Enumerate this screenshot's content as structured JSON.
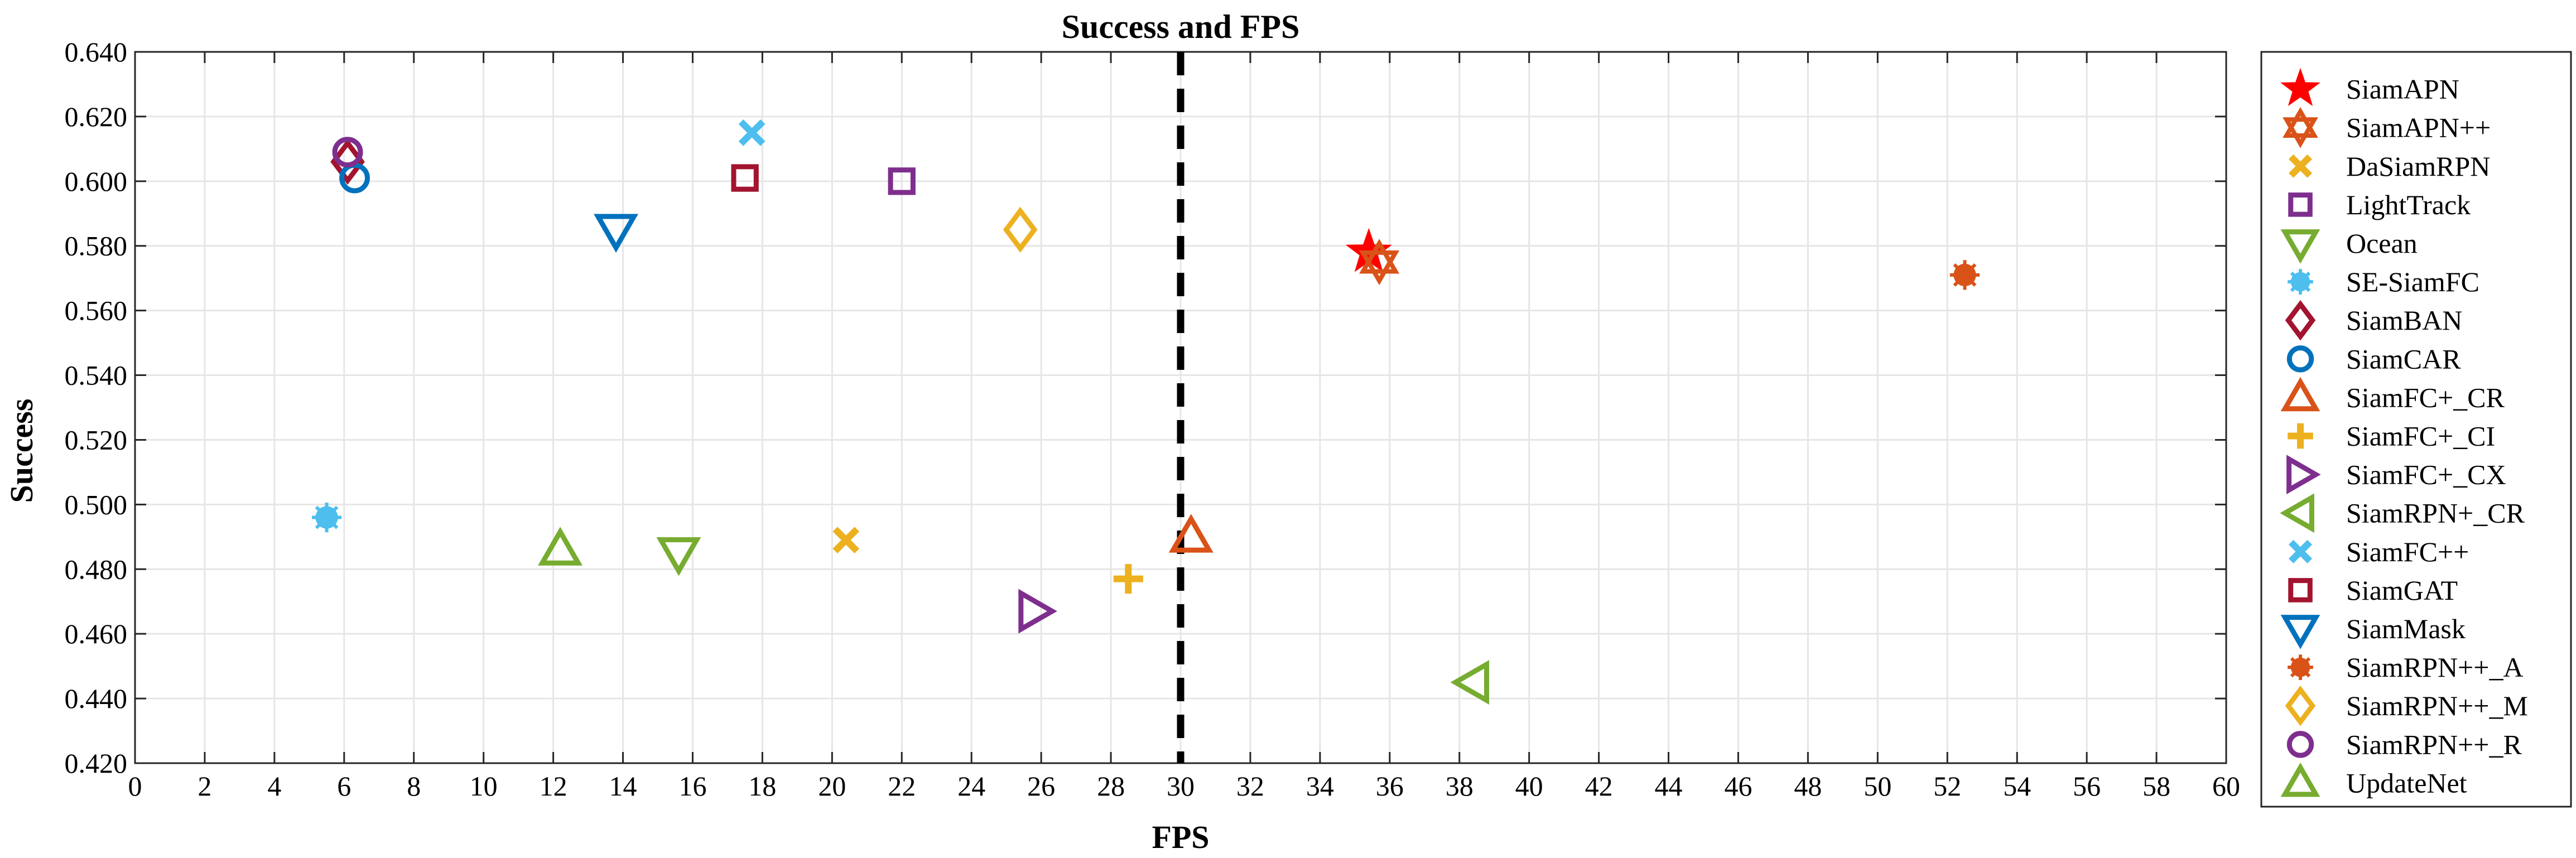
{
  "chart_data": {
    "type": "scatter",
    "title": "Success and FPS",
    "xlabel": "FPS",
    "ylabel": "Success",
    "xlim": [
      0,
      60
    ],
    "ylim": [
      0.42,
      0.64
    ],
    "x_ticks": [
      "0",
      "2",
      "4",
      "6",
      "8",
      "10",
      "12",
      "14",
      "16",
      "18",
      "20",
      "22",
      "24",
      "26",
      "28",
      "30",
      "32",
      "34",
      "36",
      "38",
      "40",
      "42",
      "44",
      "46",
      "48",
      "50",
      "52",
      "54",
      "56",
      "58",
      "60"
    ],
    "y_ticks": [
      "0.420",
      "0.440",
      "0.460",
      "0.480",
      "0.500",
      "0.520",
      "0.540",
      "0.560",
      "0.580",
      "0.600",
      "0.620",
      "0.640"
    ],
    "grid": true,
    "legend_position": "outside-right",
    "reference_line": {
      "x": 30,
      "style": "dashed",
      "color": "#000000"
    },
    "series": [
      {
        "name": "SiamAPN",
        "marker": "star5",
        "color": "#ff0000",
        "filled": true,
        "x": 35.4,
        "y": 0.578
      },
      {
        "name": "SiamAPN++",
        "marker": "hexagram",
        "color": "#d95319",
        "filled": true,
        "x": 35.7,
        "y": 0.575
      },
      {
        "name": "DaSiamRPN",
        "marker": "x",
        "color": "#edb120",
        "filled": true,
        "x": 20.4,
        "y": 0.489
      },
      {
        "name": "LightTrack",
        "marker": "square",
        "color": "#7e2f8e",
        "filled": false,
        "x": 22.0,
        "y": 0.6
      },
      {
        "name": "Ocean",
        "marker": "tri-down",
        "color": "#77ac30",
        "filled": false,
        "x": 15.6,
        "y": 0.485
      },
      {
        "name": "SE-SiamFC",
        "marker": "asterisk",
        "color": "#4dbeee",
        "filled": true,
        "x": 5.5,
        "y": 0.496
      },
      {
        "name": "SiamBAN",
        "marker": "diamond",
        "color": "#a2142f",
        "filled": false,
        "x": 6.1,
        "y": 0.606
      },
      {
        "name": "SiamCAR",
        "marker": "circle",
        "color": "#0072bd",
        "filled": false,
        "x": 6.3,
        "y": 0.601
      },
      {
        "name": "SiamFC+_CR",
        "marker": "tri-up",
        "color": "#d95319",
        "filled": false,
        "x": 30.3,
        "y": 0.49
      },
      {
        "name": "SiamFC+_CI",
        "marker": "plus",
        "color": "#edb120",
        "filled": true,
        "x": 28.5,
        "y": 0.477
      },
      {
        "name": "SiamFC+_CX",
        "marker": "tri-right",
        "color": "#7e2f8e",
        "filled": false,
        "x": 25.8,
        "y": 0.467
      },
      {
        "name": "SiamRPN+_CR",
        "marker": "tri-left",
        "color": "#77ac30",
        "filled": false,
        "x": 38.4,
        "y": 0.445
      },
      {
        "name": "SiamFC++",
        "marker": "x",
        "color": "#4dbeee",
        "filled": true,
        "x": 17.7,
        "y": 0.615
      },
      {
        "name": "SiamGAT",
        "marker": "square",
        "color": "#a2142f",
        "filled": false,
        "x": 17.5,
        "y": 0.601
      },
      {
        "name": "SiamMask",
        "marker": "tri-down",
        "color": "#0072bd",
        "filled": false,
        "x": 13.8,
        "y": 0.585
      },
      {
        "name": "SiamRPN++_A",
        "marker": "asterisk",
        "color": "#d95319",
        "filled": true,
        "x": 52.5,
        "y": 0.571
      },
      {
        "name": "SiamRPN++_M",
        "marker": "diamond",
        "color": "#edb120",
        "filled": false,
        "x": 25.4,
        "y": 0.585
      },
      {
        "name": "SiamRPN++_R",
        "marker": "circle",
        "color": "#7e2f8e",
        "filled": false,
        "x": 6.1,
        "y": 0.609
      },
      {
        "name": "UpdateNet",
        "marker": "tri-up",
        "color": "#77ac30",
        "filled": false,
        "x": 12.2,
        "y": 0.486
      }
    ]
  }
}
